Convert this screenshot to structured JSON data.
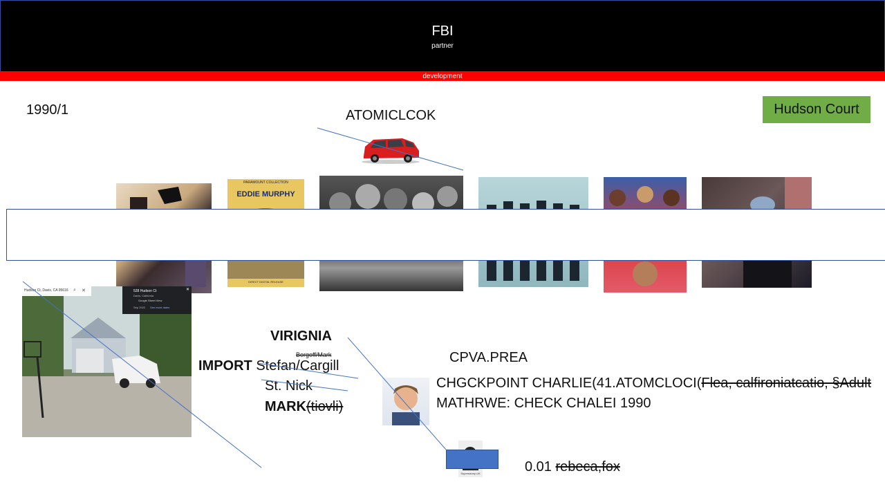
{
  "header": {
    "title": "FBI",
    "subtitle": "partner",
    "bar_label": "development"
  },
  "date_label": "1990/1",
  "top_label": "ATOMICLCOK",
  "tag_label": "Hudson Court",
  "map_card": {
    "address": "Hudson Ct, Davis, CA 95616",
    "place": "528 Hudson Ct",
    "city": "Davis, California",
    "source": "Google Street View",
    "date": "Sep 2022",
    "more": "See more dates"
  },
  "names": {
    "virignia": "VIRIGNIA",
    "borgoff": "Borgoff/Mark",
    "import_bold": "IMPORT",
    "import_rest": "Stefan/Cargill",
    "st_nick": "St. Nick",
    "mark_bold": "MARK",
    "mark_rest": "(tiovli)"
  },
  "checkpoint": {
    "cpva": "CPVA.PREA",
    "line1_plain": "CHGCKPOINT CHARLIE(41.ATOMCLOCI(",
    "line1_strike": "Flea, calfironiatcatio, §Adult",
    "line2": "MATHRWE: CHECK CHALEI 1990"
  },
  "bottom": {
    "value": "0.01",
    "strike": "rebeca,fox",
    "thumb_caption": "Supernanny UK"
  },
  "album_title": {
    "name": "EDDIE MURPHY",
    "top": "PARAMOUNT COLLECTION",
    "bottom": "DIRECT DIGITAL RELEASE"
  }
}
